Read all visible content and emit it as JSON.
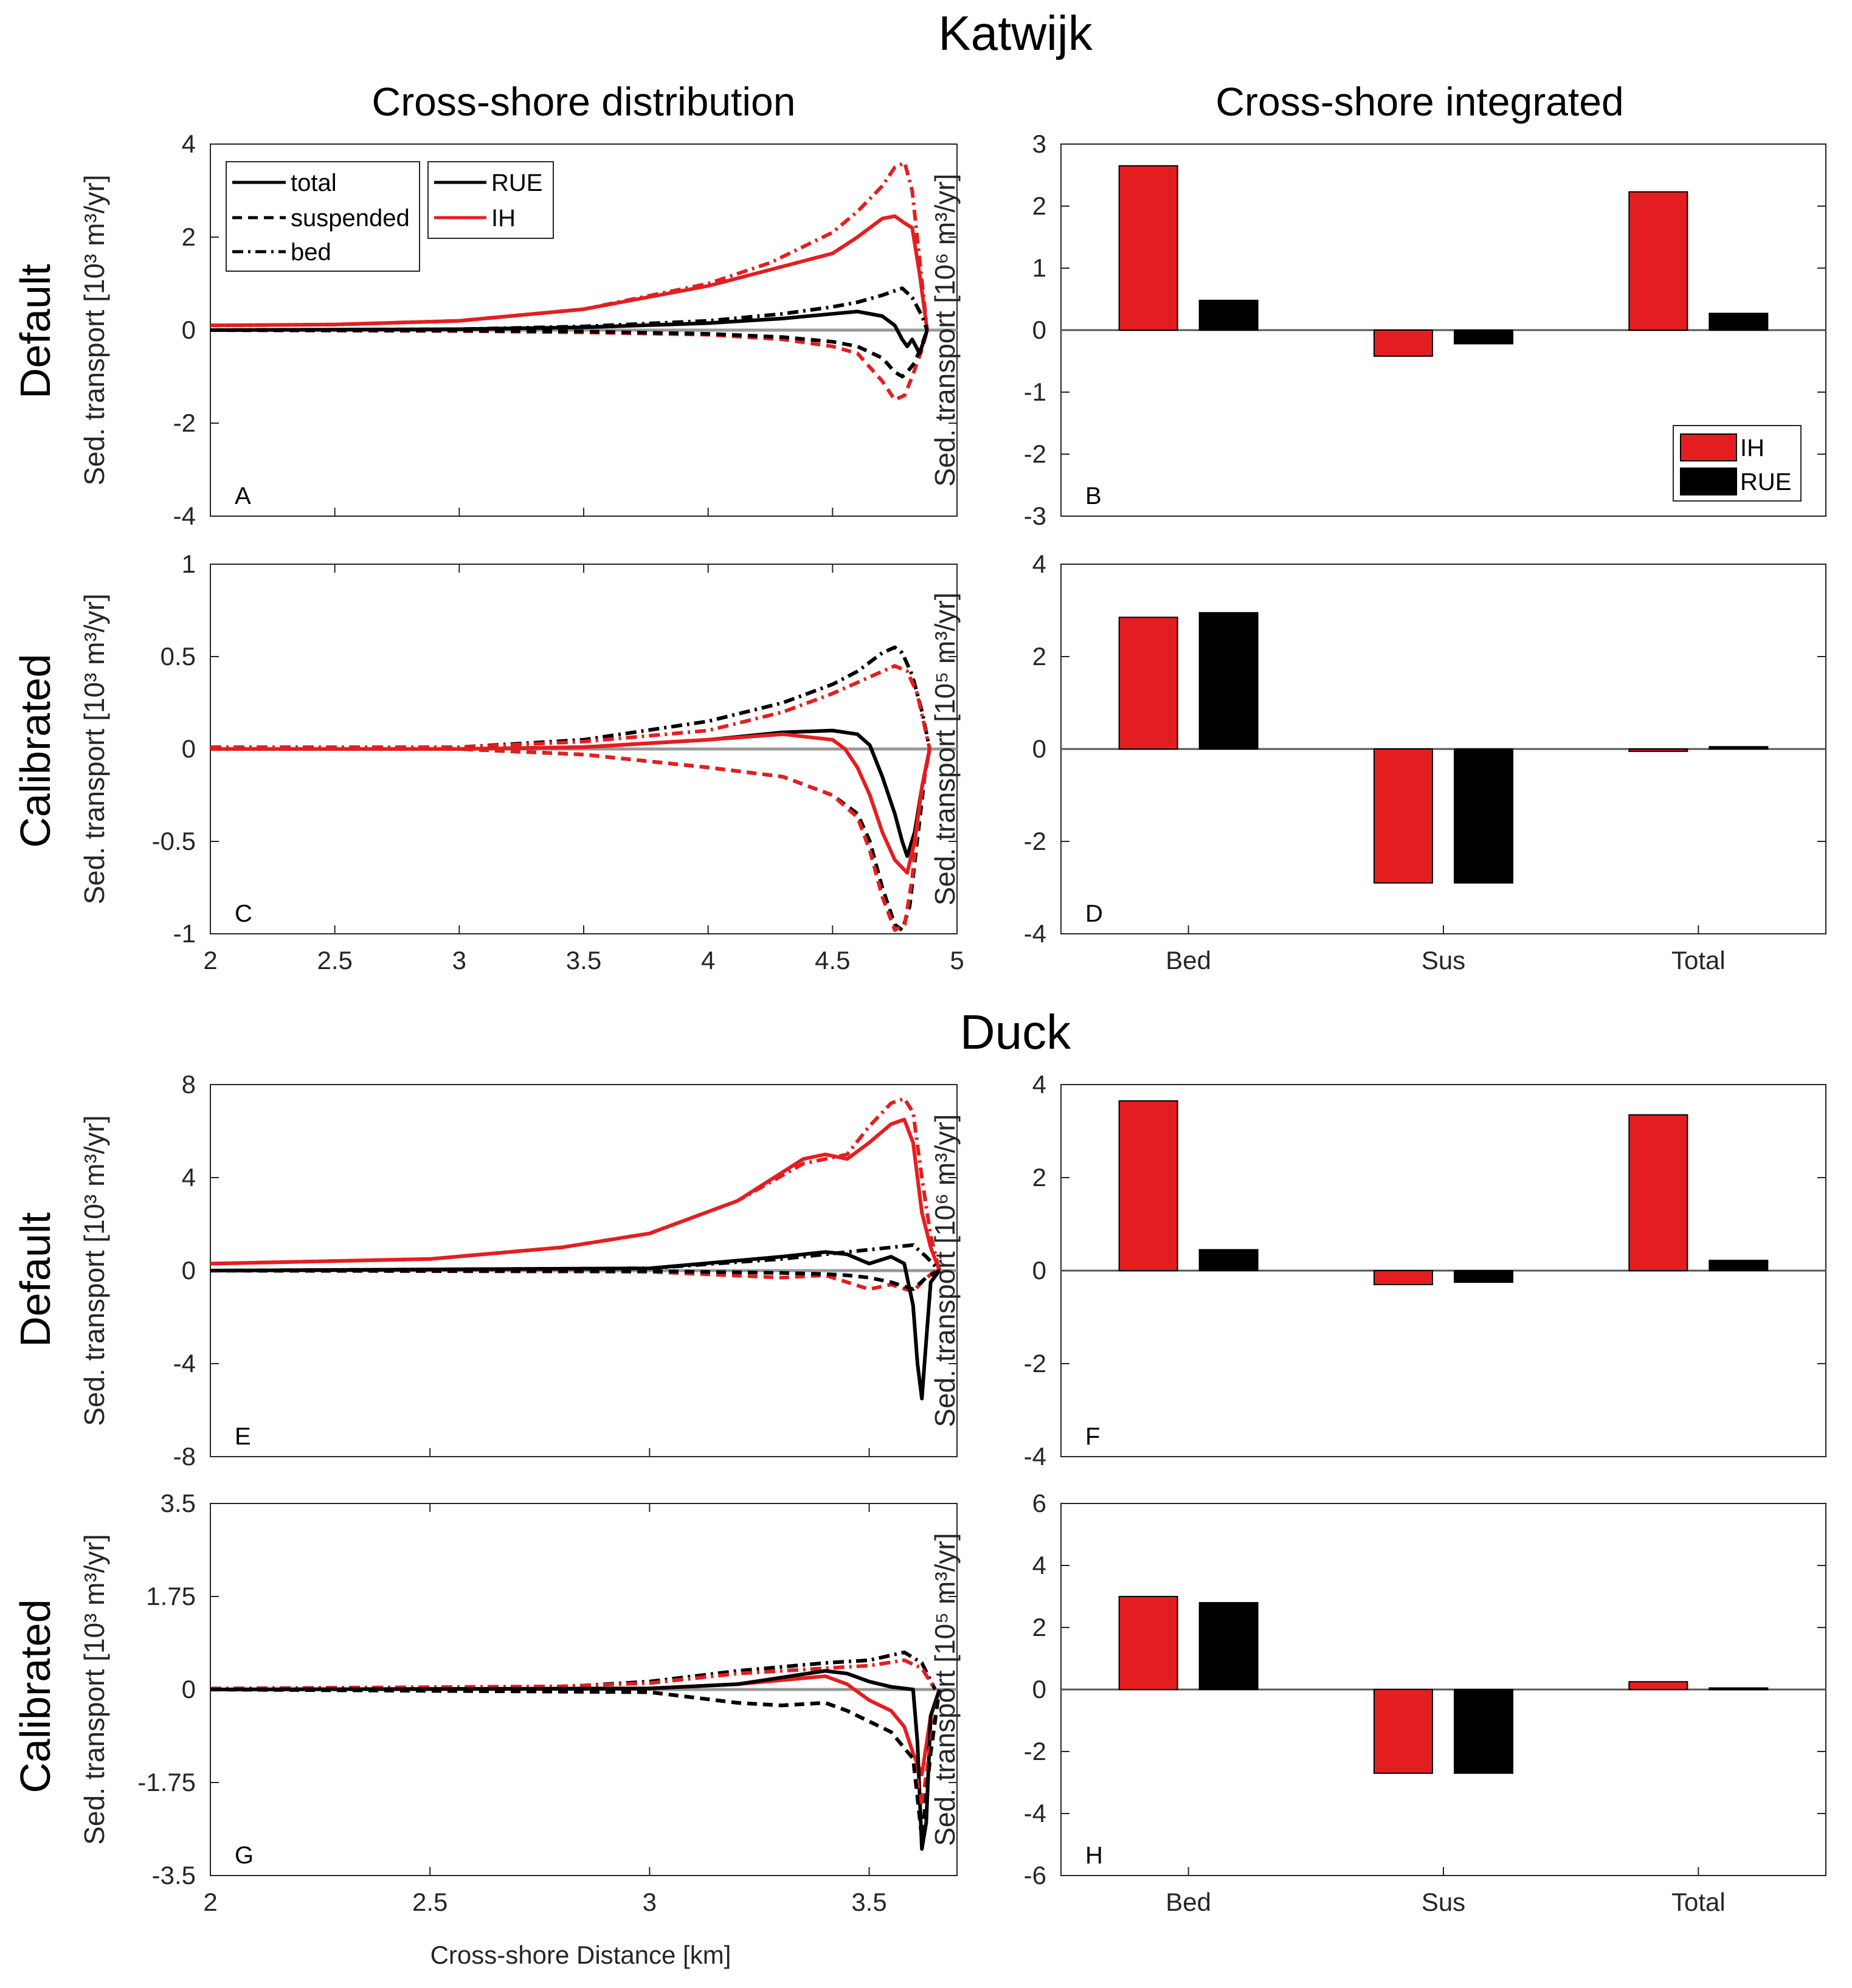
{
  "titles": {
    "katwijk": "Katwijk",
    "duck": "Duck",
    "left_col": "Cross-shore distribution",
    "right_col": "Cross-shore integrated",
    "row_default_1": "Default",
    "row_calibrated_1": "Calibrated",
    "row_default_2": "Default",
    "row_calibrated_2": "Calibrated",
    "xlabel_bottom": "Cross-shore Distance [km]"
  },
  "colors": {
    "IH": "#e41e20",
    "RUE": "#000000",
    "zero_line": "#999999"
  },
  "legend_style": {
    "total": "total",
    "suspended": "suspended",
    "bed": "bed"
  },
  "legend_model": {
    "RUE": "RUE",
    "IH": "IH"
  },
  "legend_bar": {
    "IH": "IH",
    "RUE": "RUE"
  },
  "chart_data": [
    {
      "id": "A",
      "type": "line",
      "panel_label": "A",
      "ylabel": "Sed. transport [10³ m³/yr]",
      "xlim": [
        2,
        5
      ],
      "ylim": [
        -4,
        4
      ],
      "yticks": [
        "4",
        "2",
        "0",
        "-2",
        "-4"
      ],
      "xticks": [],
      "series": [
        {
          "model": "IH",
          "style": "bed",
          "x": [
            2,
            2.5,
            3,
            3.5,
            4,
            4.25,
            4.5,
            4.6,
            4.7,
            4.75,
            4.79,
            4.82,
            4.85,
            4.88
          ],
          "y": [
            0.1,
            0.12,
            0.2,
            0.45,
            1.0,
            1.45,
            2.1,
            2.55,
            3.1,
            3.5,
            3.6,
            3.0,
            1.5,
            0
          ]
        },
        {
          "model": "IH",
          "style": "total",
          "x": [
            2,
            2.5,
            3,
            3.5,
            4,
            4.25,
            4.5,
            4.6,
            4.7,
            4.75,
            4.79,
            4.82,
            4.85,
            4.88
          ],
          "y": [
            0.1,
            0.12,
            0.2,
            0.45,
            0.95,
            1.3,
            1.65,
            2.0,
            2.4,
            2.45,
            2.3,
            2.2,
            1.2,
            0
          ]
        },
        {
          "model": "IH",
          "style": "suspended",
          "x": [
            2,
            3,
            3.5,
            4,
            4.3,
            4.5,
            4.6,
            4.7,
            4.75,
            4.79,
            4.82,
            4.86,
            4.88
          ],
          "y": [
            0,
            -0.02,
            -0.05,
            -0.1,
            -0.2,
            -0.35,
            -0.5,
            -1.1,
            -1.5,
            -1.4,
            -1.0,
            -0.4,
            0
          ]
        },
        {
          "model": "RUE",
          "style": "bed",
          "x": [
            2,
            3,
            3.5,
            4,
            4.3,
            4.5,
            4.6,
            4.7,
            4.78,
            4.82,
            4.86,
            4.88
          ],
          "y": [
            0,
            0.02,
            0.08,
            0.2,
            0.35,
            0.5,
            0.6,
            0.75,
            0.9,
            0.7,
            0.3,
            0
          ]
        },
        {
          "model": "RUE",
          "style": "total",
          "x": [
            2,
            3,
            3.5,
            4,
            4.3,
            4.5,
            4.6,
            4.7,
            4.75,
            4.78,
            4.8,
            4.82,
            4.85,
            4.88
          ],
          "y": [
            0,
            0.02,
            0.06,
            0.15,
            0.25,
            0.35,
            0.4,
            0.3,
            0.1,
            -0.2,
            -0.35,
            -0.2,
            -0.5,
            0
          ]
        },
        {
          "model": "RUE",
          "style": "suspended",
          "x": [
            2,
            3,
            3.5,
            4,
            4.3,
            4.5,
            4.6,
            4.7,
            4.75,
            4.78,
            4.8,
            4.83,
            4.86,
            4.88
          ],
          "y": [
            0,
            -0.01,
            -0.03,
            -0.08,
            -0.15,
            -0.25,
            -0.35,
            -0.6,
            -0.9,
            -1.0,
            -0.9,
            -0.7,
            -0.3,
            0
          ]
        }
      ]
    },
    {
      "id": "B",
      "type": "bar",
      "panel_label": "B",
      "ylabel": "Sed. transport [10⁶ m³/yr]",
      "categories": [
        "Bed",
        "Sus",
        "Total"
      ],
      "ylim": [
        -3,
        3
      ],
      "yticks": [
        "3",
        "2",
        "1",
        "0",
        "-1",
        "-2",
        "-3"
      ],
      "show_xticks": false,
      "series": [
        {
          "name": "IH",
          "values": [
            2.65,
            -0.42,
            2.23
          ]
        },
        {
          "name": "RUE",
          "values": [
            0.48,
            -0.22,
            0.27
          ]
        }
      ]
    },
    {
      "id": "C",
      "type": "line",
      "panel_label": "C",
      "ylabel": "Sed. transport [10³ m³/yr]",
      "xlim": [
        2,
        5
      ],
      "ylim": [
        -1,
        1
      ],
      "yticks": [
        "1",
        "0.5",
        "0",
        "-0.5",
        "-1"
      ],
      "xticks": [
        "2",
        "2.5",
        "3",
        "3.5",
        "4",
        "4.5",
        "5"
      ],
      "series": [
        {
          "model": "RUE",
          "style": "bed",
          "x": [
            2,
            3,
            3.5,
            4,
            4.3,
            4.5,
            4.6,
            4.7,
            4.75,
            4.78,
            4.82,
            4.86,
            4.89
          ],
          "y": [
            0,
            0.01,
            0.05,
            0.15,
            0.25,
            0.35,
            0.42,
            0.52,
            0.55,
            0.52,
            0.4,
            0.2,
            0
          ]
        },
        {
          "model": "IH",
          "style": "bed",
          "x": [
            2,
            3,
            3.5,
            4,
            4.3,
            4.5,
            4.6,
            4.7,
            4.75,
            4.8,
            4.84,
            4.89
          ],
          "y": [
            0.01,
            0.01,
            0.04,
            0.1,
            0.2,
            0.3,
            0.36,
            0.42,
            0.45,
            0.42,
            0.3,
            0
          ]
        },
        {
          "model": "RUE",
          "style": "total",
          "x": [
            2,
            3,
            3.5,
            4,
            4.3,
            4.5,
            4.6,
            4.65,
            4.7,
            4.75,
            4.78,
            4.8,
            4.83,
            4.86,
            4.89
          ],
          "y": [
            0,
            0,
            0.01,
            0.05,
            0.09,
            0.1,
            0.08,
            0.02,
            -0.15,
            -0.35,
            -0.5,
            -0.58,
            -0.45,
            -0.2,
            0
          ]
        },
        {
          "model": "IH",
          "style": "total",
          "x": [
            2,
            3,
            3.5,
            4,
            4.3,
            4.5,
            4.55,
            4.6,
            4.65,
            4.7,
            4.75,
            4.8,
            4.83,
            4.86,
            4.89
          ],
          "y": [
            0,
            0,
            0.01,
            0.05,
            0.08,
            0.05,
            0.0,
            -0.1,
            -0.25,
            -0.45,
            -0.6,
            -0.67,
            -0.5,
            -0.2,
            0
          ]
        },
        {
          "model": "RUE",
          "style": "suspended",
          "x": [
            2,
            3,
            3.5,
            4,
            4.3,
            4.5,
            4.6,
            4.65,
            4.7,
            4.75,
            4.78,
            4.81,
            4.84,
            4.87,
            4.89
          ],
          "y": [
            0,
            0,
            -0.03,
            -0.1,
            -0.15,
            -0.25,
            -0.35,
            -0.5,
            -0.75,
            -0.95,
            -0.98,
            -0.85,
            -0.5,
            -0.15,
            0
          ]
        },
        {
          "model": "IH",
          "style": "suspended",
          "x": [
            2,
            3,
            3.5,
            4,
            4.3,
            4.5,
            4.6,
            4.65,
            4.7,
            4.75,
            4.79,
            4.82,
            4.85,
            4.89
          ],
          "y": [
            0,
            0,
            -0.03,
            -0.1,
            -0.15,
            -0.25,
            -0.37,
            -0.55,
            -0.8,
            -0.98,
            -0.95,
            -0.7,
            -0.3,
            0
          ]
        }
      ]
    },
    {
      "id": "D",
      "type": "bar",
      "panel_label": "D",
      "ylabel": "Sed. transport [10⁵ m³/yr]",
      "categories": [
        "Bed",
        "Sus",
        "Total"
      ],
      "ylim": [
        -4,
        4
      ],
      "yticks": [
        "4",
        "2",
        "0",
        "-2",
        "-4"
      ],
      "show_xticks": true,
      "series": [
        {
          "name": "IH",
          "values": [
            2.85,
            -2.9,
            -0.05
          ]
        },
        {
          "name": "RUE",
          "values": [
            2.95,
            -2.9,
            0.05
          ]
        }
      ]
    },
    {
      "id": "E",
      "type": "line",
      "panel_label": "E",
      "ylabel": "Sed. transport [10³ m³/yr]",
      "xlim": [
        2,
        3.7
      ],
      "ylim": [
        -8,
        8
      ],
      "yticks": [
        "8",
        "4",
        "0",
        "-4",
        "-8"
      ],
      "xticks": [],
      "series": [
        {
          "model": "IH",
          "style": "bed",
          "x": [
            2,
            2.5,
            2.8,
            3,
            3.2,
            3.35,
            3.45,
            3.5,
            3.55,
            3.58,
            3.6,
            3.62,
            3.64,
            3.66
          ],
          "y": [
            0.3,
            0.5,
            1.0,
            1.6,
            3.0,
            4.6,
            5.0,
            6.2,
            7.2,
            7.4,
            6.8,
            4.0,
            1.5,
            0
          ]
        },
        {
          "model": "IH",
          "style": "total",
          "x": [
            2,
            2.5,
            2.8,
            3,
            3.2,
            3.35,
            3.4,
            3.45,
            3.5,
            3.55,
            3.58,
            3.6,
            3.62,
            3.64,
            3.66
          ],
          "y": [
            0.3,
            0.5,
            1.0,
            1.6,
            3.0,
            4.8,
            5.0,
            4.8,
            5.5,
            6.3,
            6.5,
            5.5,
            2.5,
            1.0,
            0
          ]
        },
        {
          "model": "IH",
          "style": "suspended",
          "x": [
            2,
            3,
            3.3,
            3.4,
            3.45,
            3.5,
            3.55,
            3.6,
            3.62,
            3.65
          ],
          "y": [
            0,
            -0.05,
            -0.3,
            -0.2,
            -0.5,
            -0.8,
            -0.6,
            -0.9,
            -0.5,
            0
          ]
        },
        {
          "model": "RUE",
          "style": "bed",
          "x": [
            2,
            3,
            3.3,
            3.4,
            3.5,
            3.55,
            3.6,
            3.63,
            3.66
          ],
          "y": [
            0,
            0.1,
            0.5,
            0.7,
            0.9,
            1.0,
            1.1,
            0.6,
            0
          ]
        },
        {
          "model": "RUE",
          "style": "total",
          "x": [
            2,
            3,
            3.3,
            3.4,
            3.45,
            3.5,
            3.55,
            3.58,
            3.6,
            3.61,
            3.62,
            3.63,
            3.64,
            3.66
          ],
          "y": [
            0,
            0.1,
            0.6,
            0.8,
            0.7,
            0.3,
            0.6,
            0.3,
            -1.5,
            -4.0,
            -5.5,
            -3.0,
            -0.5,
            0
          ]
        },
        {
          "model": "RUE",
          "style": "suspended",
          "x": [
            2,
            3,
            3.3,
            3.4,
            3.45,
            3.5,
            3.55,
            3.6,
            3.63,
            3.66
          ],
          "y": [
            0,
            -0.02,
            -0.1,
            -0.15,
            -0.2,
            -0.3,
            -0.5,
            -0.8,
            -0.3,
            0
          ]
        }
      ]
    },
    {
      "id": "F",
      "type": "bar",
      "panel_label": "F",
      "ylabel": "Sed. transport [10⁶ m³/yr]",
      "categories": [
        "Bed",
        "Sus",
        "Total"
      ],
      "ylim": [
        -4,
        4
      ],
      "yticks": [
        "4",
        "2",
        "0",
        "-2",
        "-4"
      ],
      "show_xticks": false,
      "series": [
        {
          "name": "IH",
          "values": [
            3.65,
            -0.3,
            3.35
          ]
        },
        {
          "name": "RUE",
          "values": [
            0.45,
            -0.25,
            0.22
          ]
        }
      ]
    },
    {
      "id": "G",
      "type": "line",
      "panel_label": "G",
      "ylabel": "Sed. transport [10³ m³/yr]",
      "xlim": [
        2,
        3.7
      ],
      "ylim": [
        -3.5,
        3.5
      ],
      "yticks": [
        "3.5",
        "1.75",
        "0",
        "-1.75",
        "-3.5"
      ],
      "xticks": [
        "2",
        "2.5",
        "3",
        "3.5"
      ],
      "series": [
        {
          "model": "RUE",
          "style": "bed",
          "x": [
            2,
            2.8,
            3,
            3.2,
            3.4,
            3.5,
            3.58,
            3.62,
            3.65
          ],
          "y": [
            0,
            0.05,
            0.15,
            0.35,
            0.5,
            0.55,
            0.7,
            0.5,
            0
          ]
        },
        {
          "model": "IH",
          "style": "bed",
          "x": [
            2,
            2.8,
            3,
            3.2,
            3.4,
            3.5,
            3.58,
            3.62,
            3.65
          ],
          "y": [
            0.02,
            0.06,
            0.12,
            0.3,
            0.4,
            0.45,
            0.55,
            0.4,
            0
          ]
        },
        {
          "model": "IH",
          "style": "total",
          "x": [
            2,
            3,
            3.2,
            3.4,
            3.45,
            3.5,
            3.55,
            3.58,
            3.6,
            3.62,
            3.64,
            3.66
          ],
          "y": [
            0,
            0.02,
            0.1,
            0.25,
            0.1,
            -0.2,
            -0.4,
            -0.7,
            -1.2,
            -1.6,
            -0.5,
            0
          ]
        },
        {
          "model": "RUE",
          "style": "total",
          "x": [
            2,
            3,
            3.2,
            3.4,
            3.45,
            3.5,
            3.55,
            3.6,
            3.61,
            3.62,
            3.63,
            3.64,
            3.66
          ],
          "y": [
            0,
            0.02,
            0.1,
            0.35,
            0.3,
            0.15,
            0.05,
            0,
            -1.0,
            -3.0,
            -2.5,
            -0.5,
            0
          ]
        },
        {
          "model": "IH",
          "style": "suspended",
          "x": [
            2,
            3,
            3.2,
            3.3,
            3.4,
            3.45,
            3.5,
            3.55,
            3.6,
            3.62,
            3.64,
            3.66
          ],
          "y": [
            0,
            -0.05,
            -0.25,
            -0.3,
            -0.25,
            -0.4,
            -0.6,
            -0.8,
            -1.3,
            -2.2,
            -1.0,
            0
          ]
        },
        {
          "model": "RUE",
          "style": "suspended",
          "x": [
            2,
            3,
            3.2,
            3.3,
            3.4,
            3.45,
            3.5,
            3.55,
            3.6,
            3.62,
            3.64,
            3.66
          ],
          "y": [
            0,
            -0.05,
            -0.25,
            -0.3,
            -0.25,
            -0.4,
            -0.6,
            -0.8,
            -1.3,
            -2.8,
            -1.2,
            0
          ]
        }
      ]
    },
    {
      "id": "H",
      "type": "bar",
      "panel_label": "H",
      "ylabel": "Sed. transport [10⁵ m³/yr]",
      "categories": [
        "Bed",
        "Sus",
        "Total"
      ],
      "ylim": [
        -6,
        6
      ],
      "yticks": [
        "6",
        "4",
        "2",
        "0",
        "-2",
        "-4",
        "-6"
      ],
      "show_xticks": true,
      "series": [
        {
          "name": "IH",
          "values": [
            3.0,
            -2.7,
            0.25
          ]
        },
        {
          "name": "RUE",
          "values": [
            2.8,
            -2.7,
            0.05
          ]
        }
      ]
    }
  ]
}
